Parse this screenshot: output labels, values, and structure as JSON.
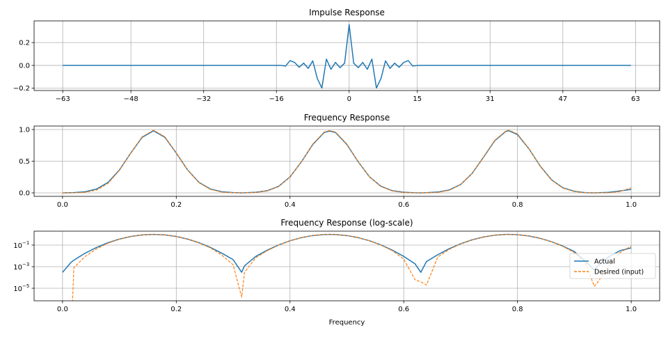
{
  "chart_data": [
    {
      "type": "line",
      "title": "Impulse Response",
      "xlabel": "",
      "ylabel": "",
      "xlim": [
        -69.3,
        68.3
      ],
      "ylim": [
        -0.22,
        0.39
      ],
      "xticks": [
        -63,
        -48,
        -32,
        -16,
        0,
        15,
        31,
        47,
        63
      ],
      "yticks": [
        -0.2,
        0.0,
        0.2
      ],
      "ytick_labels": [
        "−0.2",
        "0.0",
        "0.2"
      ],
      "xtick_labels": [
        "−63",
        "−48",
        "−32",
        "−16",
        "0",
        "15",
        "31",
        "47",
        "63"
      ],
      "grid": true,
      "series": [
        {
          "color": "#1f77b4",
          "x_range": [
            -63,
            62
          ],
          "nonzero": {
            "-14": -0.006,
            "-13": 0.042,
            "-12": 0.026,
            "-11": -0.016,
            "-10": 0.02,
            "-9": -0.026,
            "-8": 0.04,
            "-7": -0.115,
            "-6": -0.198,
            "-5": 0.055,
            "-4": -0.034,
            "-3": 0.026,
            "-2": -0.02,
            "-1": 0.02,
            "0": 0.357,
            "1": 0.02,
            "2": -0.02,
            "3": 0.026,
            "4": -0.034,
            "5": 0.055,
            "6": -0.198,
            "7": -0.115,
            "8": 0.04,
            "9": -0.026,
            "10": 0.02,
            "11": -0.016,
            "12": 0.026,
            "13": 0.042,
            "14": -0.006
          }
        }
      ]
    },
    {
      "type": "line",
      "title": "Frequency Response",
      "xlabel": "",
      "ylabel": "",
      "xlim": [
        -0.05,
        1.05
      ],
      "ylim": [
        -0.055,
        1.055
      ],
      "xticks": [
        0.0,
        0.2,
        0.4,
        0.6,
        0.8,
        1.0
      ],
      "xtick_labels": [
        "0.0",
        "0.2",
        "0.4",
        "0.6",
        "0.8",
        "1.0"
      ],
      "yticks": [
        0.0,
        0.5,
        1.0
      ],
      "ytick_labels": [
        "0.0",
        "0.5",
        "1.0"
      ],
      "grid": true,
      "series_ref": "freq"
    },
    {
      "type": "line",
      "title": "Frequency Response (log-scale)",
      "xlabel": "Frequency",
      "ylabel": "",
      "yscale": "log",
      "xlim": [
        -0.05,
        1.05
      ],
      "ylim": [
        6.9e-07,
        1.95
      ],
      "xticks": [
        0.0,
        0.2,
        0.4,
        0.6,
        0.8,
        1.0
      ],
      "xtick_labels": [
        "0.0",
        "0.2",
        "0.4",
        "0.6",
        "0.8",
        "1.0"
      ],
      "yticks": [
        0.1,
        0.001,
        1e-05
      ],
      "ytick_labels": [
        [
          "10",
          "−1"
        ],
        [
          "10",
          "−3"
        ],
        [
          "10",
          "−5"
        ]
      ],
      "grid": true,
      "legend": {
        "placement": "center-right",
        "entries": [
          "Actual",
          "Desired (input)"
        ]
      },
      "series_ref": "freq"
    }
  ],
  "freq": {
    "x": [
      0,
      0.015,
      0.02,
      0.04,
      0.06,
      0.08,
      0.1,
      0.12,
      0.14,
      0.16,
      0.18,
      0.2,
      0.22,
      0.24,
      0.26,
      0.28,
      0.3,
      0.315,
      0.32,
      0.34,
      0.36,
      0.38,
      0.4,
      0.42,
      0.44,
      0.46,
      0.47,
      0.48,
      0.5,
      0.52,
      0.54,
      0.56,
      0.58,
      0.6,
      0.62,
      0.63,
      0.64,
      0.66,
      0.68,
      0.7,
      0.72,
      0.74,
      0.76,
      0.78,
      0.785,
      0.8,
      0.82,
      0.84,
      0.86,
      0.88,
      0.9,
      0.92,
      0.935,
      0.94,
      0.96,
      0.98,
      1.0
    ],
    "series": [
      {
        "name": "Actual",
        "color": "#1f77b4",
        "style": "solid",
        "values": [
          0.0003,
          0.0025,
          0.004,
          0.018,
          0.061,
          0.165,
          0.361,
          0.628,
          0.877,
          0.98,
          0.877,
          0.628,
          0.361,
          0.165,
          0.061,
          0.018,
          0.0045,
          0.0003,
          0.0012,
          0.009,
          0.034,
          0.103,
          0.251,
          0.49,
          0.763,
          0.953,
          0.975,
          0.953,
          0.763,
          0.49,
          0.251,
          0.103,
          0.034,
          0.009,
          0.0018,
          0.0003,
          0.003,
          0.013,
          0.046,
          0.132,
          0.304,
          0.559,
          0.823,
          0.973,
          0.98,
          0.92,
          0.698,
          0.423,
          0.205,
          0.08,
          0.025,
          0.003,
          0.0005,
          0.001,
          0.008,
          0.03,
          0.055
        ]
      },
      {
        "name": "Desired (input)",
        "color": "#ff7f0e",
        "style": "dashed",
        "values": [
          0,
          0,
          0.0008,
          0.009,
          0.045,
          0.15,
          0.355,
          0.63,
          0.885,
          0.99,
          0.885,
          0.63,
          0.36,
          0.16,
          0.055,
          0.012,
          0.0015,
          1.5e-06,
          0.0003,
          0.007,
          0.03,
          0.1,
          0.25,
          0.49,
          0.77,
          0.96,
          0.985,
          0.96,
          0.77,
          0.49,
          0.25,
          0.1,
          0.03,
          0.005,
          6e-05,
          4e-05,
          2e-05,
          0.008,
          0.04,
          0.13,
          0.305,
          0.565,
          0.83,
          0.98,
          0.99,
          0.93,
          0.7,
          0.42,
          0.2,
          0.075,
          0.02,
          0.002,
          1.5e-05,
          3e-05,
          0.001,
          0.02,
          0.08
        ]
      }
    ]
  }
}
